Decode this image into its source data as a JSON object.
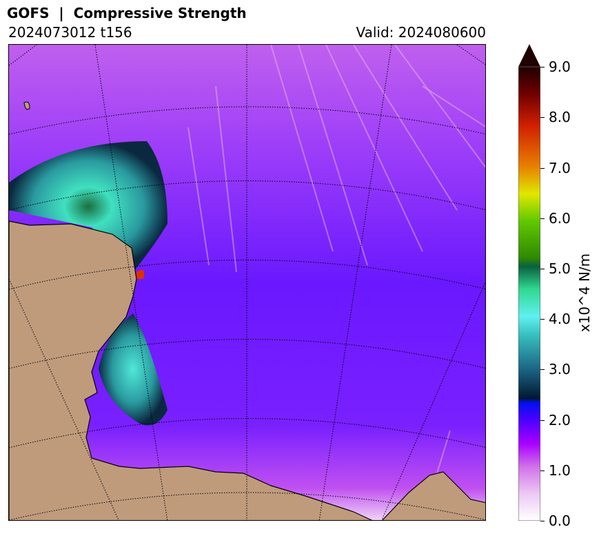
{
  "header": {
    "title": "GOFS  |  Compressive Strength",
    "run": "2024073012 t156",
    "valid": "Valid: 2024080600"
  },
  "colorbar": {
    "label": "x10^4 N/m",
    "ticks": [
      "0.0",
      "1.0",
      "2.0",
      "3.0",
      "4.0",
      "5.0",
      "6.0",
      "7.0",
      "8.0",
      "9.0"
    ],
    "min": 0,
    "max": 9,
    "extend": "max",
    "colors": [
      "#ffffff",
      "#e0a8ee",
      "#c050e8",
      "#9a00ff",
      "#3a00ff",
      "#0010f0",
      "#002030",
      "#1a6f80",
      "#38c0c0",
      "#60f0f0",
      "#30d890",
      "#0f7048",
      "#2f8a00",
      "#60c800",
      "#d8e800",
      "#e8a000",
      "#e03000",
      "#b00000",
      "#600000",
      "#200000"
    ]
  },
  "map": {
    "land_color": "#bf9b7c",
    "ocean_color": "#a040f0"
  }
}
